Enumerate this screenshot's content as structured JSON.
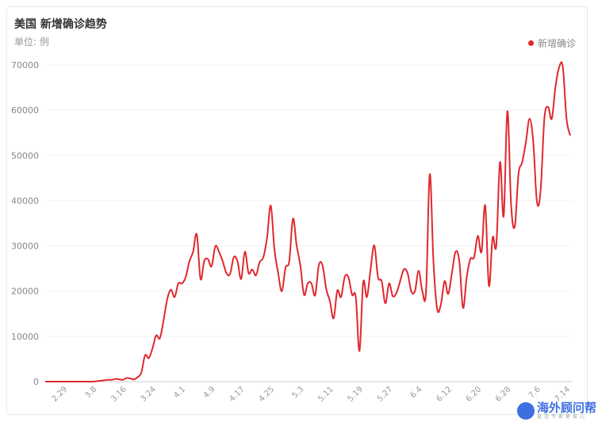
{
  "title": "美国 新增确诊趋势",
  "subtitle": "单位: 例",
  "watermark": {
    "name": "海外顾问帮",
    "slogan": "直连专家更省心"
  },
  "chart_data": {
    "type": "line",
    "title": "美国 新增确诊趋势",
    "ylabel": "单位: 例",
    "ylim": [
      0,
      70000
    ],
    "yticks": [
      0,
      10000,
      20000,
      30000,
      40000,
      50000,
      60000,
      70000
    ],
    "grid": true,
    "legend_position": "top-right",
    "color": "#e0282e",
    "x_tick_labels": [
      "2.29",
      "3.8",
      "3.16",
      "3.24",
      "4.1",
      "4.9",
      "4.17",
      "4.25",
      "5.3",
      "5.11",
      "5.19",
      "5.27",
      "6.4",
      "6.12",
      "6.20",
      "6.28",
      "7.6",
      "7.14"
    ],
    "x": [
      "2.23",
      "2.24",
      "2.25",
      "2.26",
      "2.27",
      "2.28",
      "2.29",
      "3.1",
      "3.2",
      "3.3",
      "3.4",
      "3.5",
      "3.6",
      "3.7",
      "3.8",
      "3.9",
      "3.10",
      "3.11",
      "3.12",
      "3.13",
      "3.14",
      "3.15",
      "3.16",
      "3.17",
      "3.18",
      "3.19",
      "3.20",
      "3.21",
      "3.22",
      "3.23",
      "3.24",
      "3.25",
      "3.26",
      "3.27",
      "3.28",
      "3.29",
      "3.30",
      "3.31",
      "4.1",
      "4.2",
      "4.3",
      "4.4",
      "4.5",
      "4.6",
      "4.7",
      "4.8",
      "4.9",
      "4.10",
      "4.11",
      "4.12",
      "4.13",
      "4.14",
      "4.15",
      "4.16",
      "4.17",
      "4.18",
      "4.19",
      "4.20",
      "4.21",
      "4.22",
      "4.23",
      "4.24",
      "4.25",
      "4.26",
      "4.27",
      "4.28",
      "4.29",
      "4.30",
      "5.1",
      "5.2",
      "5.3",
      "5.4",
      "5.5",
      "5.6",
      "5.7",
      "5.8",
      "5.9",
      "5.10",
      "5.11",
      "5.12",
      "5.13",
      "5.14",
      "5.15",
      "5.16",
      "5.17",
      "5.18",
      "5.19",
      "5.20",
      "5.21",
      "5.22",
      "5.23",
      "5.24",
      "5.25",
      "5.26",
      "5.27",
      "5.28",
      "5.29",
      "5.30",
      "5.31",
      "6.1",
      "6.2",
      "6.3",
      "6.4",
      "6.5",
      "6.6",
      "6.7",
      "6.8",
      "6.9",
      "6.10",
      "6.11",
      "6.12",
      "6.13",
      "6.14",
      "6.15",
      "6.16",
      "6.17",
      "6.18",
      "6.19",
      "6.20",
      "6.21",
      "6.22",
      "6.23",
      "6.24",
      "6.25",
      "6.26",
      "6.27",
      "6.28",
      "6.29",
      "6.30",
      "7.1",
      "7.2",
      "7.3",
      "7.4",
      "7.5",
      "7.6",
      "7.7",
      "7.8",
      "7.9",
      "7.10",
      "7.11",
      "7.12",
      "7.13",
      "7.14"
    ],
    "series": [
      {
        "name": "新增确诊",
        "values": [
          0,
          0,
          0,
          0,
          0,
          0,
          0,
          0,
          0,
          0,
          0,
          0,
          0,
          0,
          100,
          200,
          300,
          400,
          400,
          600,
          500,
          400,
          800,
          700,
          500,
          1000,
          2000,
          5800,
          5200,
          7300,
          10200,
          9600,
          13500,
          18200,
          20300,
          18700,
          21700,
          21700,
          23100,
          26600,
          28700,
          32500,
          22700,
          26600,
          27100,
          25500,
          29900,
          28700,
          26600,
          24000,
          23800,
          27500,
          26600,
          22700,
          28700,
          24000,
          24800,
          23500,
          26400,
          27500,
          31800,
          38900,
          29200,
          24000,
          20000,
          25200,
          26600,
          36000,
          30100,
          25700,
          19200,
          21700,
          21700,
          19100,
          25700,
          25700,
          20500,
          17800,
          14000,
          20100,
          18700,
          23100,
          23100,
          19200,
          18700,
          6800,
          21900,
          18700,
          24800,
          30100,
          23100,
          22200,
          17300,
          21700,
          18900,
          19600,
          22200,
          24800,
          24000,
          20000,
          20000,
          24500,
          20000,
          20000,
          45800,
          26600,
          16100,
          17000,
          22200,
          19400,
          24000,
          28700,
          26600,
          16300,
          23100,
          27100,
          27500,
          32200,
          28700,
          38900,
          21200,
          31800,
          30100,
          48500,
          36600,
          59800,
          39200,
          34300,
          45800,
          48500,
          52900,
          58100,
          52900,
          39700,
          42400,
          58100,
          60700,
          58100,
          65100,
          69500,
          69500,
          58100,
          54400
        ]
      }
    ]
  }
}
